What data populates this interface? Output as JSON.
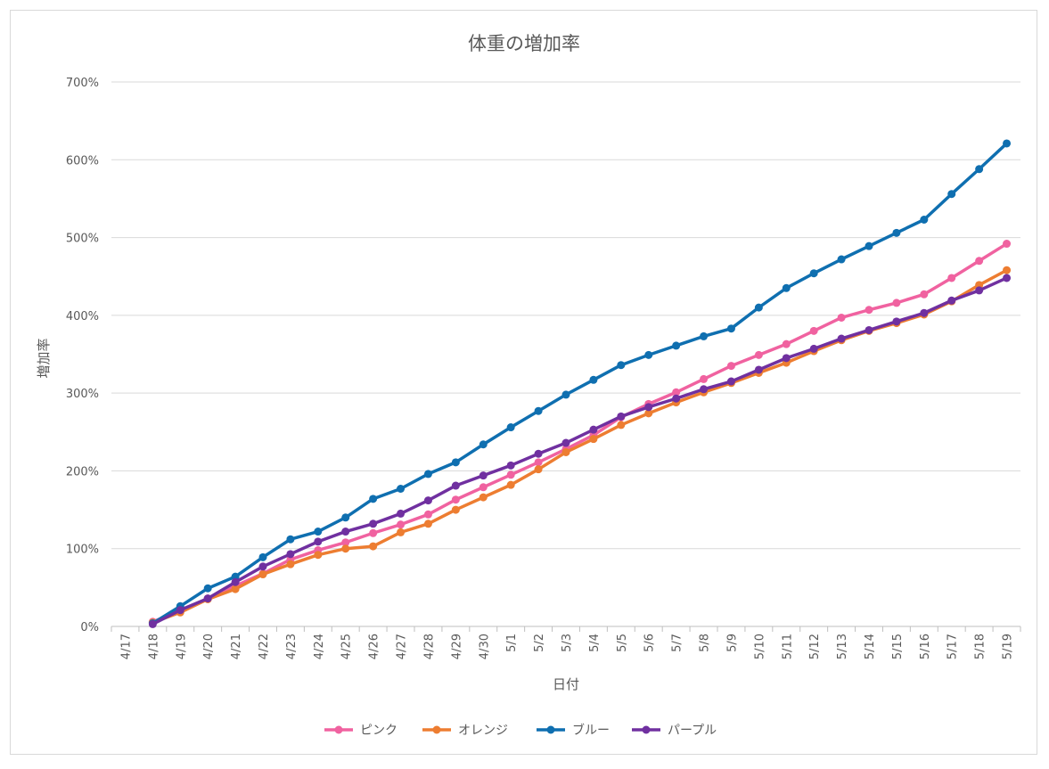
{
  "chart_data": {
    "type": "line",
    "title": "体重の増加率",
    "xlabel": "日付",
    "ylabel": "増加率",
    "ylim": [
      0,
      700
    ],
    "y_unit": "%",
    "y_ticks": [
      "0%",
      "100%",
      "200%",
      "300%",
      "400%",
      "500%",
      "600%",
      "700%"
    ],
    "grid": true,
    "legend_position": "bottom",
    "categories": [
      "4/17",
      "4/18",
      "4/19",
      "4/20",
      "4/21",
      "4/22",
      "4/23",
      "4/24",
      "4/25",
      "4/26",
      "4/27",
      "4/28",
      "4/29",
      "4/30",
      "5/1",
      "5/2",
      "5/3",
      "5/4",
      "5/5",
      "5/6",
      "5/7",
      "5/8",
      "5/9",
      "5/10",
      "5/11",
      "5/12",
      "5/13",
      "5/14",
      "5/15",
      "5/16",
      "5/17",
      "5/18",
      "5/19"
    ],
    "series": [
      {
        "name": "ピンク",
        "color": "#f062a0",
        "values": [
          null,
          6,
          20,
          36,
          52,
          68,
          86,
          98,
          108,
          120,
          131,
          144,
          163,
          179,
          195,
          211,
          228,
          246,
          269,
          286,
          301,
          318,
          335,
          349,
          363,
          380,
          397,
          407,
          416,
          427,
          448,
          470,
          492
        ]
      },
      {
        "name": "オレンジ",
        "color": "#ed7d31",
        "values": [
          null,
          5,
          18,
          35,
          48,
          67,
          80,
          92,
          100,
          103,
          121,
          132,
          150,
          166,
          182,
          202,
          224,
          241,
          259,
          274,
          288,
          301,
          313,
          326,
          339,
          354,
          368,
          380,
          390,
          401,
          418,
          439,
          458
        ]
      },
      {
        "name": "ブルー",
        "color": "#0f6fb0",
        "values": [
          null,
          4,
          26,
          49,
          64,
          89,
          112,
          122,
          140,
          164,
          177,
          196,
          211,
          234,
          256,
          277,
          298,
          317,
          336,
          349,
          361,
          373,
          383,
          410,
          435,
          454,
          472,
          489,
          506,
          523,
          556,
          588,
          621
        ]
      },
      {
        "name": "パープル",
        "color": "#7030a0",
        "values": [
          null,
          3,
          21,
          36,
          57,
          77,
          93,
          109,
          122,
          132,
          145,
          162,
          181,
          194,
          207,
          222,
          236,
          253,
          270,
          282,
          293,
          305,
          315,
          330,
          345,
          357,
          370,
          381,
          392,
          403,
          419,
          432,
          448
        ]
      }
    ]
  }
}
